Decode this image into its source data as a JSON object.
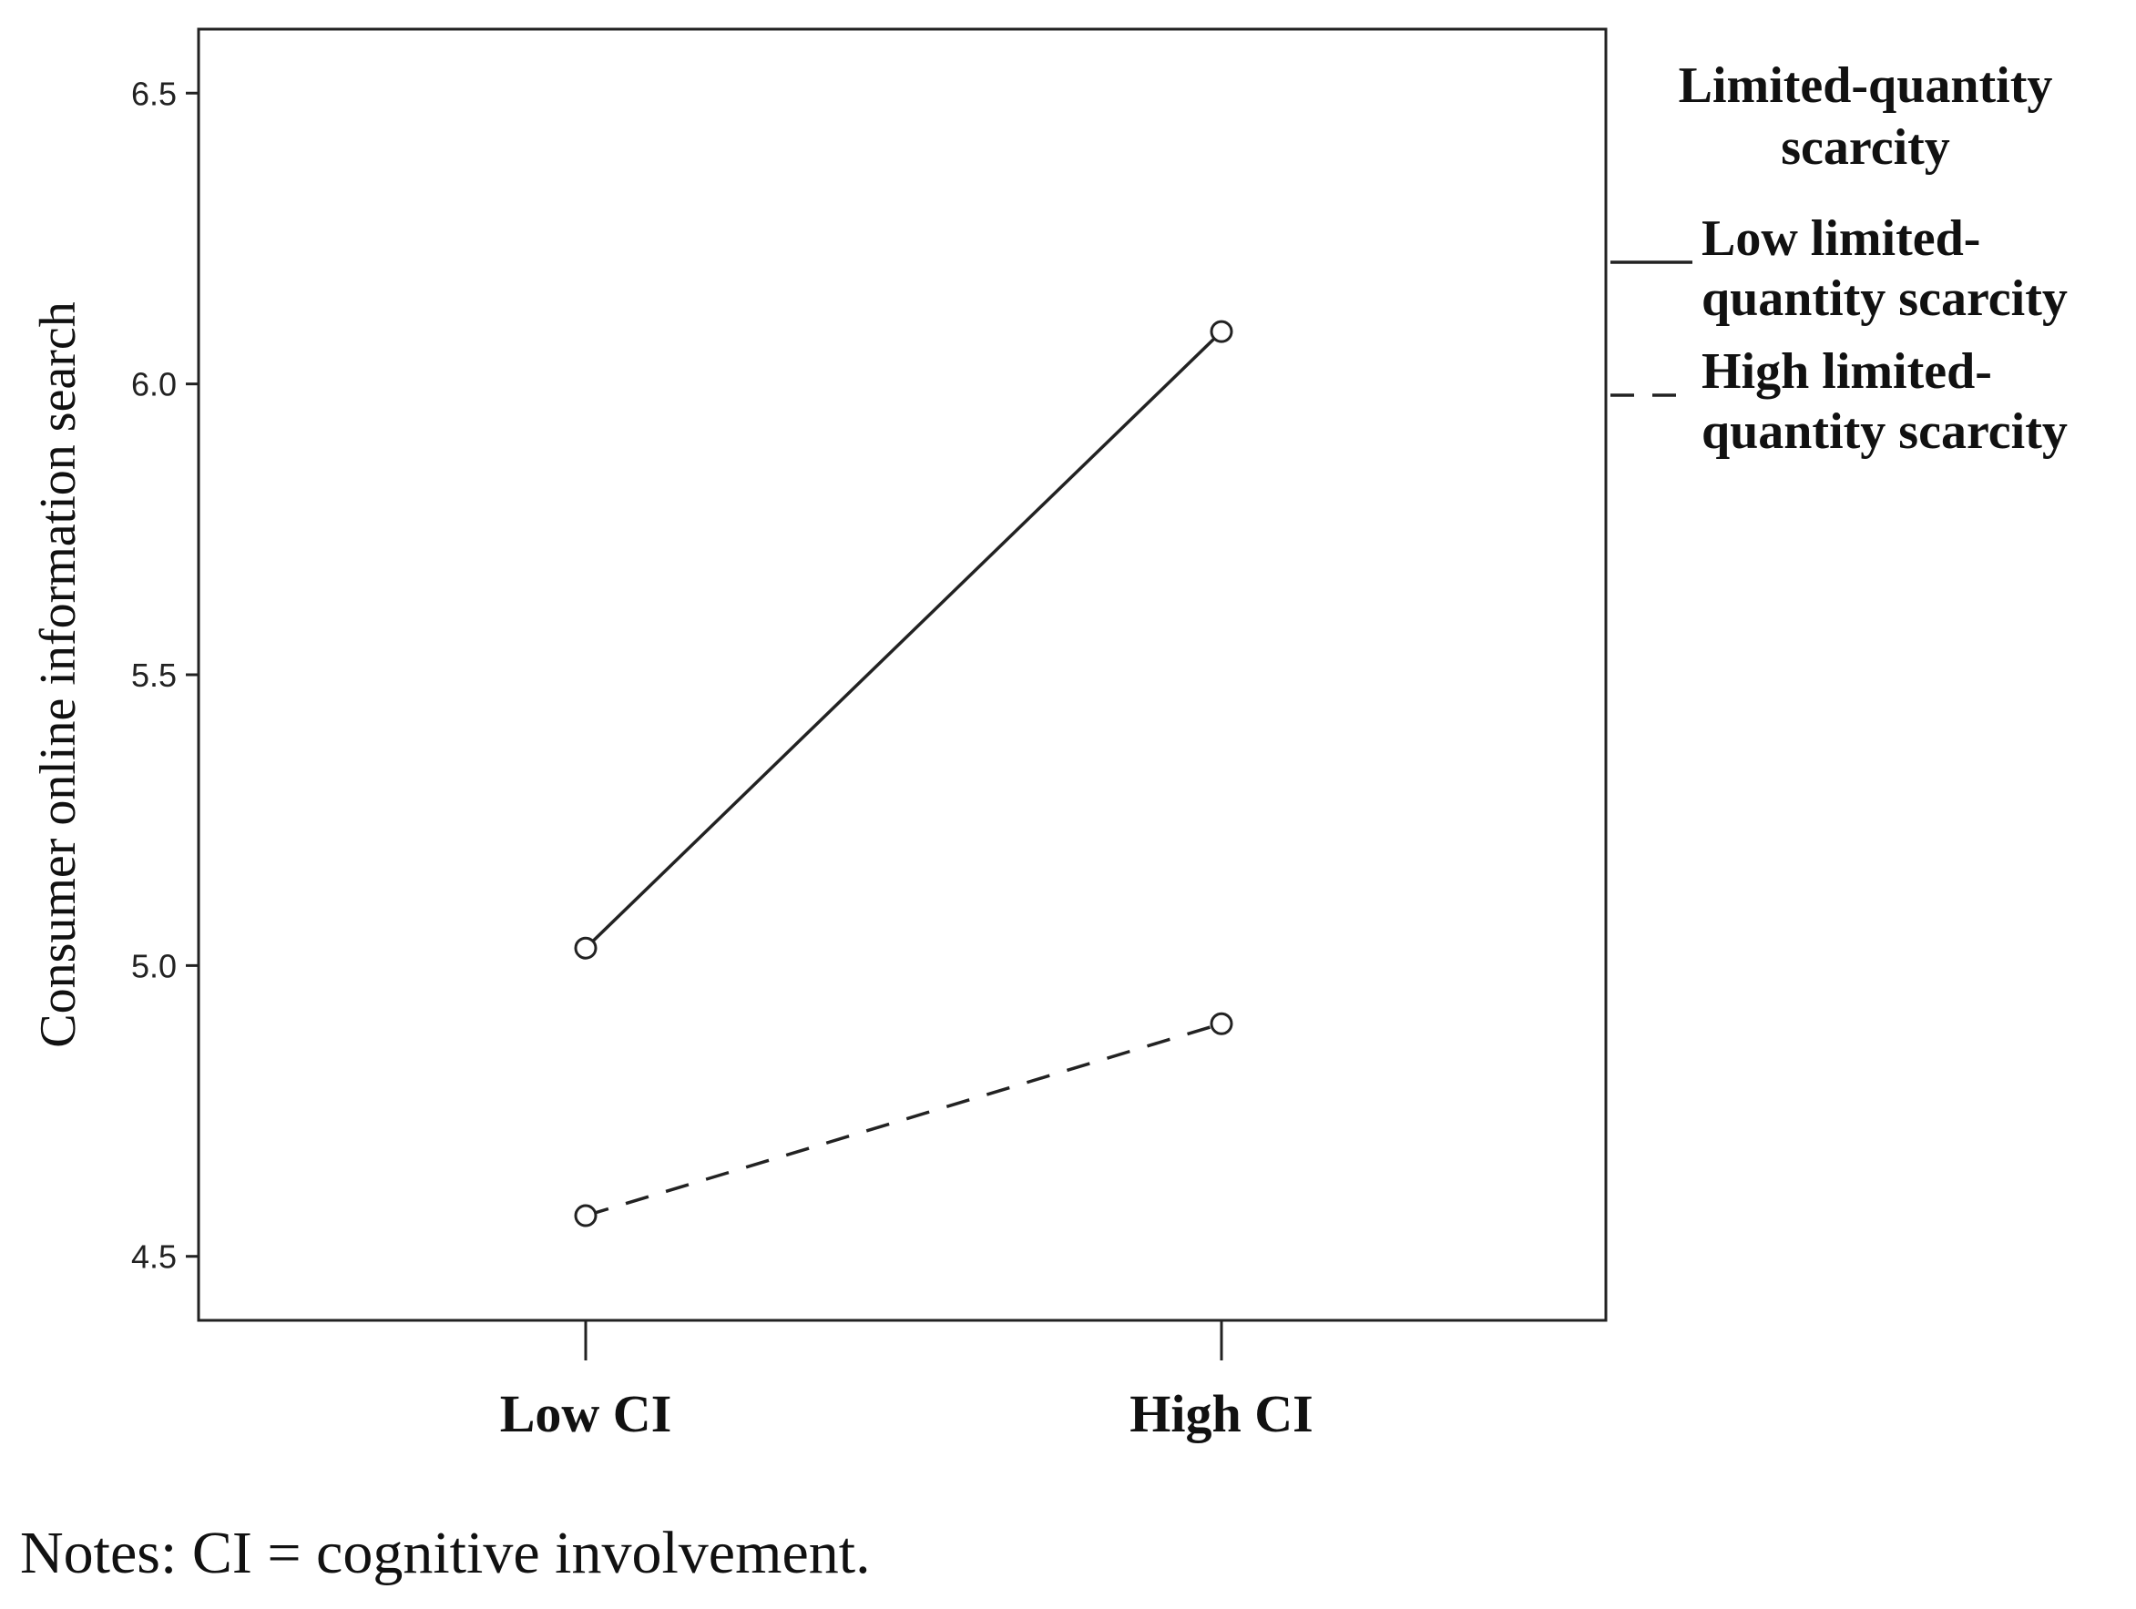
{
  "chart_data": {
    "type": "line",
    "title": "",
    "xlabel": "",
    "ylabel": "Consumer online information search",
    "categories": [
      "Low CI",
      "High CI"
    ],
    "y_ticks": [
      "4.5",
      "5.0",
      "5.5",
      "6.0",
      "6.5"
    ],
    "ylim": [
      4.39,
      6.61
    ],
    "grid": false,
    "legend": {
      "title_line1": "Limited-quantity",
      "title_line2": "scarcity",
      "placement": "right",
      "entries": [
        {
          "line1": "Low limited-",
          "line2": "quantity scarcity",
          "style": "solid"
        },
        {
          "line1": "High limited-",
          "line2": "quantity scarcity",
          "style": "dashed"
        }
      ]
    },
    "series": [
      {
        "style": "solid",
        "values": [
          5.03,
          6.09
        ]
      },
      {
        "style": "dashed",
        "values": [
          4.57,
          4.9
        ]
      }
    ],
    "marker": "open-circle",
    "line_color": "#222222"
  },
  "notes": "Notes: CI = cognitive involvement."
}
